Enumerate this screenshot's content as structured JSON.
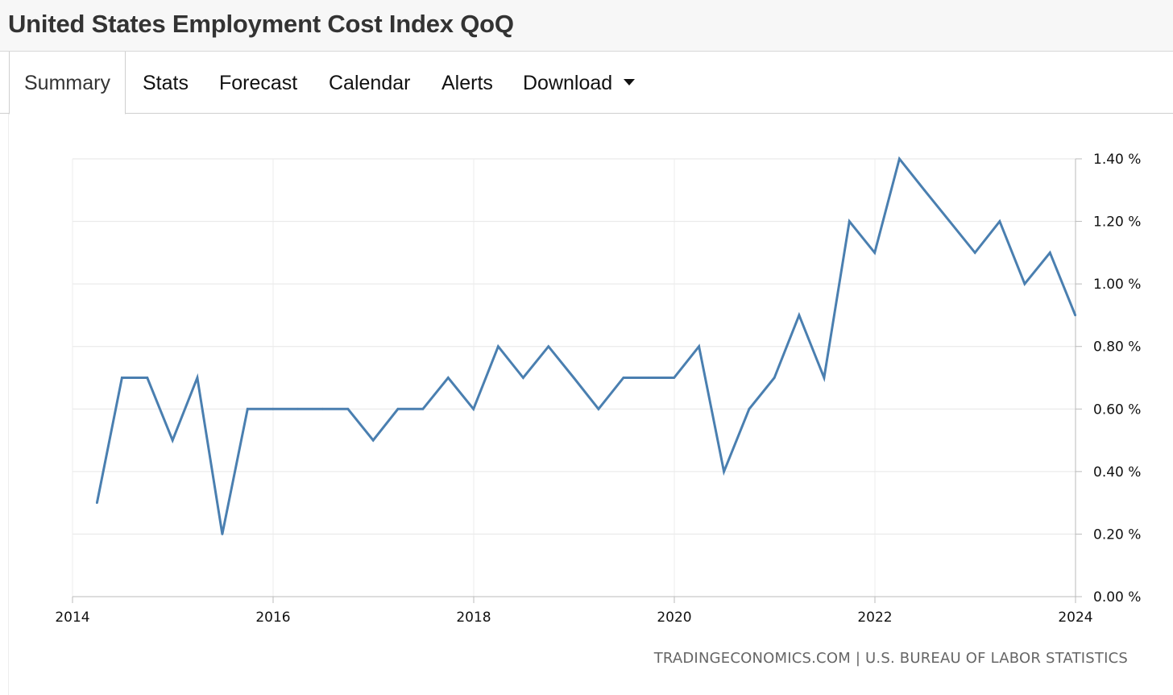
{
  "header": {
    "title": "United States Employment Cost Index QoQ"
  },
  "tabs": [
    {
      "label": "Summary",
      "active": true
    },
    {
      "label": "Stats"
    },
    {
      "label": "Forecast"
    },
    {
      "label": "Calendar"
    },
    {
      "label": "Alerts"
    },
    {
      "label": "Download",
      "has_dropdown": true
    }
  ],
  "chart_data": {
    "type": "line",
    "title": "",
    "xlabel": "",
    "ylabel": "",
    "ylim": [
      0,
      1.4
    ],
    "xlim": [
      2014,
      2024
    ],
    "y_ticks": [
      "0.00 %",
      "0.20 %",
      "0.40 %",
      "0.60 %",
      "0.80 %",
      "1.00 %",
      "1.20 %",
      "1.40 %"
    ],
    "y_tick_values": [
      0,
      0.2,
      0.4,
      0.6,
      0.8,
      1.0,
      1.2,
      1.4
    ],
    "x_ticks": [
      "2014",
      "2016",
      "2018",
      "2020",
      "2022",
      "2024"
    ],
    "x_tick_values": [
      2014,
      2016,
      2018,
      2020,
      2022,
      2024
    ],
    "grid": true,
    "y_axis_side": "right",
    "line_color": "#4a7fb0",
    "series": [
      {
        "x": [
          "2014-03-31",
          "2014-06-30",
          "2014-09-30",
          "2014-12-31",
          "2015-03-31",
          "2015-06-30",
          "2015-09-30",
          "2015-12-31",
          "2016-03-31",
          "2016-06-30",
          "2016-09-30",
          "2016-12-31",
          "2017-03-31",
          "2017-06-30",
          "2017-09-30",
          "2017-12-31",
          "2018-03-31",
          "2018-06-30",
          "2018-09-30",
          "2018-12-31",
          "2019-03-31",
          "2019-06-30",
          "2019-09-30",
          "2019-12-31",
          "2020-03-31",
          "2020-06-30",
          "2020-09-30",
          "2020-12-31",
          "2021-03-31",
          "2021-06-30",
          "2021-09-30",
          "2021-12-31",
          "2022-03-31",
          "2022-06-30",
          "2022-09-30",
          "2022-12-31",
          "2023-03-31",
          "2023-06-30",
          "2023-09-30",
          "2023-12-31"
        ],
        "values": [
          0.3,
          0.7,
          0.7,
          0.5,
          0.7,
          0.2,
          0.6,
          0.6,
          0.6,
          0.6,
          0.6,
          0.5,
          0.6,
          0.6,
          0.7,
          0.6,
          0.8,
          0.7,
          0.8,
          0.7,
          0.6,
          0.7,
          0.7,
          0.7,
          0.8,
          0.4,
          0.6,
          0.7,
          0.9,
          0.7,
          1.2,
          1.1,
          1.4,
          1.3,
          1.2,
          1.1,
          1.2,
          1.0,
          1.1,
          0.9
        ]
      }
    ]
  },
  "source": {
    "text": "TRADINGECONOMICS.COM | U.S. BUREAU OF LABOR STATISTICS"
  }
}
